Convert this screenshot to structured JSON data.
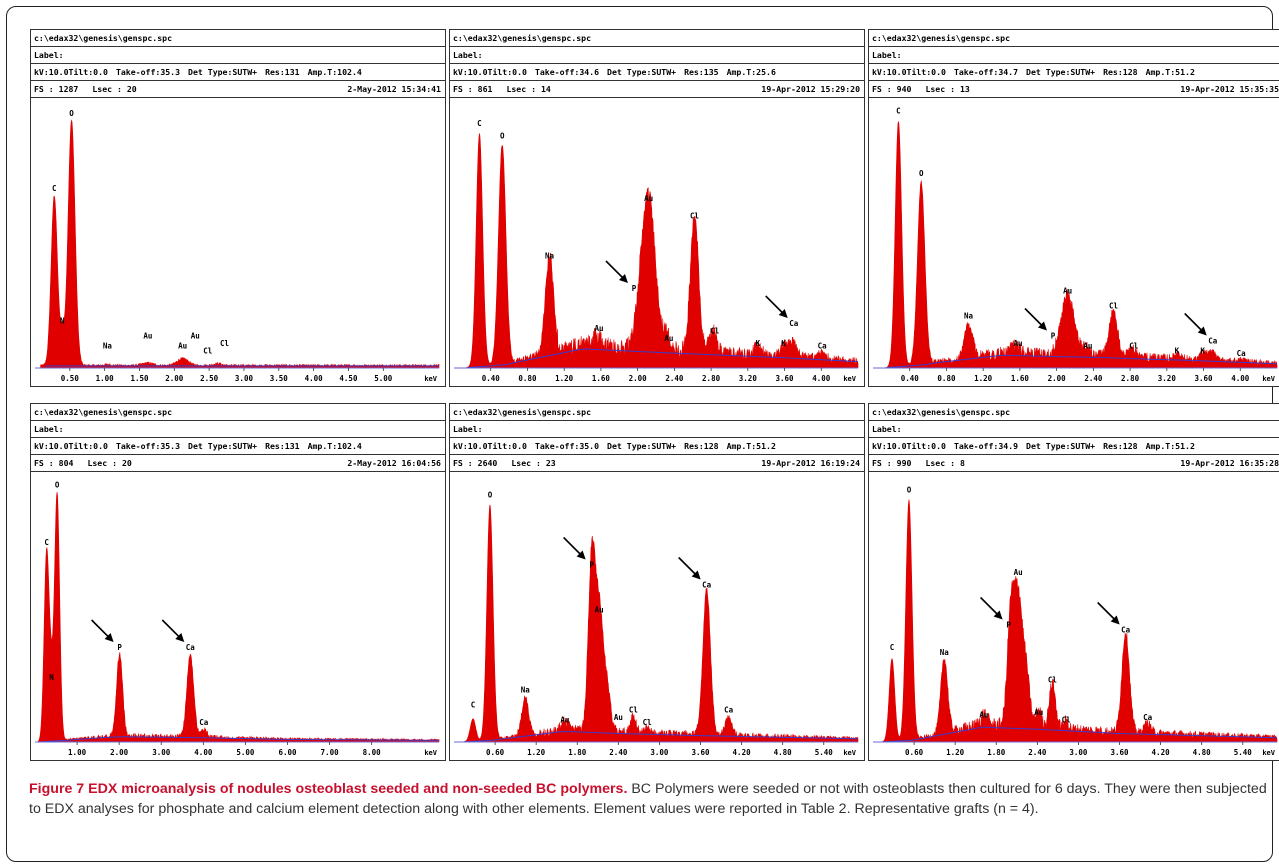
{
  "figure": {
    "caption_title": "Figure 7 EDX microanalysis of nodules osteoblast seeded and non-seeded BC polymers.",
    "caption_body": "BC Polymers were seeded or not with osteoblasts then cultured for 6 days. They were then subjected to EDX analyses for phosphate and calcium element detection along with other elements. Element values were reported in Table 2. Representative grafts (n = 4)."
  },
  "chart_data": [
    {
      "type": "line",
      "file": "c:\\edax32\\genesis\\genspc.spc",
      "label": "Label:",
      "kv": "kV:10.0",
      "tilt": "Tilt:0.0",
      "takeoff": "Take-off:35.3",
      "det_type": "Det Type:SUTW+",
      "res": "Res:131",
      "amp": "Amp.T:102.4",
      "fs": "FS : 1287",
      "lsec": "Lsec : 20",
      "datetime": "2-May-2012 15:34:41",
      "xlabel": "keV",
      "xlim": [
        0,
        5.8
      ],
      "xticks": [
        "0.50",
        "1.00",
        "1.50",
        "2.00",
        "2.50",
        "3.00",
        "3.50",
        "4.00",
        "4.50",
        "5.00"
      ],
      "xtick_values": [
        0.5,
        1.0,
        1.5,
        2.0,
        2.5,
        3.0,
        3.5,
        4.0,
        4.5,
        5.0
      ],
      "color": "#e00000",
      "peaks": [
        {
          "e": 0.277,
          "h": 0.68,
          "w": 0.045
        },
        {
          "e": 0.392,
          "h": 0.12,
          "w": 0.03
        },
        {
          "e": 0.525,
          "h": 0.98,
          "w": 0.05
        },
        {
          "e": 1.04,
          "h": 0.004,
          "w": 0.05
        },
        {
          "e": 1.62,
          "h": 0.01,
          "w": 0.08
        },
        {
          "e": 2.12,
          "h": 0.028,
          "w": 0.08
        },
        {
          "e": 2.62,
          "h": 0.008,
          "w": 0.06
        }
      ],
      "labels": [
        {
          "text": "C",
          "e": 0.277,
          "h": 0.7
        },
        {
          "text": "N",
          "e": 0.392,
          "h": 0.17
        },
        {
          "text": "O",
          "e": 0.525,
          "h": 1.0
        },
        {
          "text": "Na",
          "e": 1.04,
          "h": 0.07
        },
        {
          "text": "Au",
          "e": 1.62,
          "h": 0.11
        },
        {
          "text": "Au",
          "e": 2.12,
          "h": 0.07
        },
        {
          "text": "Au",
          "e": 2.3,
          "h": 0.11
        },
        {
          "text": "Cl",
          "e": 2.48,
          "h": 0.05
        },
        {
          "text": "Cl",
          "e": 2.72,
          "h": 0.08
        }
      ],
      "arrows": []
    },
    {
      "type": "line",
      "file": "c:\\edax32\\genesis\\genspc.spc",
      "label": "Label:",
      "kv": "kV:10.0",
      "tilt": "Tilt:0.0",
      "takeoff": "Take-off:34.6",
      "det_type": "Det Type:SUTW+",
      "res": "Res:135",
      "amp": "Amp.T:25.6",
      "fs": "FS : 861",
      "lsec": "Lsec : 14",
      "datetime": "19-Apr-2012 15:29:20",
      "xlabel": "keV",
      "xlim": [
        0,
        4.4
      ],
      "xticks": [
        "0.40",
        "0.80",
        "1.20",
        "1.60",
        "2.00",
        "2.40",
        "2.80",
        "3.20",
        "3.60",
        "4.00"
      ],
      "xtick_values": [
        0.4,
        0.8,
        1.2,
        1.6,
        2.0,
        2.4,
        2.8,
        3.2,
        3.6,
        4.0
      ],
      "color": "#e00000",
      "peaks": [
        {
          "e": 0.277,
          "h": 0.93,
          "w": 0.035
        },
        {
          "e": 0.525,
          "h": 0.88,
          "w": 0.04
        },
        {
          "e": 1.04,
          "h": 0.39,
          "w": 0.045
        },
        {
          "e": 1.55,
          "h": 0.04,
          "w": 0.05
        },
        {
          "e": 2.12,
          "h": 0.61,
          "w": 0.07
        },
        {
          "e": 2.02,
          "h": 0.1,
          "w": 0.05
        },
        {
          "e": 2.32,
          "h": 0.06,
          "w": 0.05
        },
        {
          "e": 2.62,
          "h": 0.54,
          "w": 0.045
        },
        {
          "e": 2.82,
          "h": 0.09,
          "w": 0.04
        },
        {
          "e": 3.31,
          "h": 0.035,
          "w": 0.04
        },
        {
          "e": 3.59,
          "h": 0.04,
          "w": 0.04
        },
        {
          "e": 3.69,
          "h": 0.055,
          "w": 0.05
        },
        {
          "e": 4.01,
          "h": 0.025,
          "w": 0.04
        }
      ],
      "baseline": [
        {
          "e": 0.6,
          "v": 0.02
        },
        {
          "e": 1.4,
          "v": 0.09
        },
        {
          "e": 2.4,
          "v": 0.07
        },
        {
          "e": 3.5,
          "v": 0.05
        },
        {
          "e": 4.4,
          "v": 0.03
        }
      ],
      "labels": [
        {
          "text": "C",
          "e": 0.277,
          "h": 0.96
        },
        {
          "text": "O",
          "e": 0.525,
          "h": 0.91
        },
        {
          "text": "Na",
          "e": 1.04,
          "h": 0.43
        },
        {
          "text": "Au",
          "e": 1.58,
          "h": 0.14
        },
        {
          "text": "P",
          "e": 1.96,
          "h": 0.3
        },
        {
          "text": "Au",
          "e": 2.12,
          "h": 0.66
        },
        {
          "text": "Au",
          "e": 2.34,
          "h": 0.1
        },
        {
          "text": "Cl",
          "e": 2.62,
          "h": 0.59
        },
        {
          "text": "Cl",
          "e": 2.84,
          "h": 0.13
        },
        {
          "text": "K",
          "e": 3.31,
          "h": 0.08
        },
        {
          "text": "K",
          "e": 3.59,
          "h": 0.08
        },
        {
          "text": "Ca",
          "e": 3.7,
          "h": 0.16
        },
        {
          "text": "Ca",
          "e": 4.01,
          "h": 0.07
        }
      ],
      "arrows": [
        {
          "e": 1.96,
          "h": 0.3
        },
        {
          "e": 3.7,
          "h": 0.16
        }
      ]
    },
    {
      "type": "line",
      "file": "c:\\edax32\\genesis\\genspc.spc",
      "label": "Label:",
      "kv": "kV:10.0",
      "tilt": "Tilt:0.0",
      "takeoff": "Take-off:34.7",
      "det_type": "Det Type:SUTW+",
      "res": "Res:128",
      "amp": "Amp.T:51.2",
      "fs": "FS : 940",
      "lsec": "Lsec : 13",
      "datetime": "19-Apr-2012 15:35:35",
      "xlabel": "keV",
      "xlim": [
        0,
        4.4
      ],
      "xticks": [
        "0.40",
        "0.80",
        "1.20",
        "1.60",
        "2.00",
        "2.40",
        "2.80",
        "3.20",
        "3.60",
        "4.00"
      ],
      "xtick_values": [
        0.4,
        0.8,
        1.2,
        1.6,
        2.0,
        2.4,
        2.8,
        3.2,
        3.6,
        4.0
      ],
      "color": "#e00000",
      "peaks": [
        {
          "e": 0.277,
          "h": 0.98,
          "w": 0.035
        },
        {
          "e": 0.525,
          "h": 0.73,
          "w": 0.04
        },
        {
          "e": 1.04,
          "h": 0.13,
          "w": 0.045
        },
        {
          "e": 1.55,
          "h": 0.03,
          "w": 0.05
        },
        {
          "e": 2.12,
          "h": 0.24,
          "w": 0.07
        },
        {
          "e": 2.32,
          "h": 0.03,
          "w": 0.05
        },
        {
          "e": 2.62,
          "h": 0.18,
          "w": 0.045
        },
        {
          "e": 2.82,
          "h": 0.04,
          "w": 0.04
        },
        {
          "e": 3.31,
          "h": 0.015,
          "w": 0.04
        },
        {
          "e": 3.59,
          "h": 0.02,
          "w": 0.04
        },
        {
          "e": 3.69,
          "h": 0.03,
          "w": 0.05
        },
        {
          "e": 4.01,
          "h": 0.01,
          "w": 0.04
        }
      ],
      "baseline": [
        {
          "e": 0.6,
          "v": 0.02
        },
        {
          "e": 1.4,
          "v": 0.06
        },
        {
          "e": 2.4,
          "v": 0.05
        },
        {
          "e": 3.5,
          "v": 0.035
        },
        {
          "e": 4.4,
          "v": 0.02
        }
      ],
      "labels": [
        {
          "text": "C",
          "e": 0.277,
          "h": 1.01
        },
        {
          "text": "O",
          "e": 0.525,
          "h": 0.76
        },
        {
          "text": "Na",
          "e": 1.04,
          "h": 0.19
        },
        {
          "text": "Au",
          "e": 1.58,
          "h": 0.08
        },
        {
          "text": "P",
          "e": 1.96,
          "h": 0.11
        },
        {
          "text": "Au",
          "e": 2.12,
          "h": 0.29
        },
        {
          "text": "Au",
          "e": 2.34,
          "h": 0.07
        },
        {
          "text": "Cl",
          "e": 2.62,
          "h": 0.23
        },
        {
          "text": "Cl",
          "e": 2.84,
          "h": 0.07
        },
        {
          "text": "K",
          "e": 3.31,
          "h": 0.05
        },
        {
          "text": "K",
          "e": 3.59,
          "h": 0.05
        },
        {
          "text": "Ca",
          "e": 3.7,
          "h": 0.09
        },
        {
          "text": "Ca",
          "e": 4.01,
          "h": 0.04
        }
      ],
      "arrows": [
        {
          "e": 1.96,
          "h": 0.11
        },
        {
          "e": 3.7,
          "h": 0.09
        }
      ]
    },
    {
      "type": "line",
      "file": "c:\\edax32\\genesis\\genspc.spc",
      "label": "Label:",
      "kv": "kV:10.0",
      "tilt": "Tilt:0.0",
      "takeoff": "Take-off:35.3",
      "det_type": "Det Type:SUTW+",
      "res": "Res:131",
      "amp": "Amp.T:102.4",
      "fs": "FS : 804",
      "lsec": "Lsec : 20",
      "datetime": "2-May-2012 16:04:56",
      "xlabel": "keV",
      "xlim": [
        0,
        9.6
      ],
      "xticks": [
        "1.00",
        "2.00",
        "3.00",
        "4.00",
        "5.00",
        "6.00",
        "7.00",
        "8.00"
      ],
      "xtick_values": [
        1,
        2,
        3,
        4,
        5,
        6,
        7,
        8
      ],
      "color": "#e00000",
      "peaks": [
        {
          "e": 0.277,
          "h": 0.76,
          "w": 0.06
        },
        {
          "e": 0.392,
          "h": 0.2,
          "w": 0.05
        },
        {
          "e": 0.525,
          "h": 0.99,
          "w": 0.06
        },
        {
          "e": 2.01,
          "h": 0.33,
          "w": 0.07
        },
        {
          "e": 3.69,
          "h": 0.33,
          "w": 0.08
        },
        {
          "e": 4.01,
          "h": 0.03,
          "w": 0.07
        }
      ],
      "baseline": [
        {
          "e": 0.8,
          "v": 0.01
        },
        {
          "e": 2.0,
          "v": 0.025
        },
        {
          "e": 4.0,
          "v": 0.02
        },
        {
          "e": 6.0,
          "v": 0.012
        },
        {
          "e": 9.6,
          "v": 0.008
        }
      ],
      "labels": [
        {
          "text": "C",
          "e": 0.277,
          "h": 0.78
        },
        {
          "text": "N",
          "e": 0.392,
          "h": 0.24
        },
        {
          "text": "O",
          "e": 0.525,
          "h": 1.01
        },
        {
          "text": "P",
          "e": 2.01,
          "h": 0.36
        },
        {
          "text": "Ca",
          "e": 3.69,
          "h": 0.36
        },
        {
          "text": "Ca",
          "e": 4.01,
          "h": 0.06
        }
      ],
      "arrows": [
        {
          "e": 2.01,
          "h": 0.36
        },
        {
          "e": 3.69,
          "h": 0.36
        }
      ]
    },
    {
      "type": "line",
      "file": "c:\\edax32\\genesis\\genspc.spc",
      "label": "Label:",
      "kv": "kV:10.0",
      "tilt": "Tilt:0.0",
      "takeoff": "Take-off:35.0",
      "det_type": "Det Type:SUTW+",
      "res": "Res:128",
      "amp": "Amp.T:51.2",
      "fs": "FS : 2640",
      "lsec": "Lsec : 23",
      "datetime": "19-Apr-2012 16:19:24",
      "xlabel": "keV",
      "xlim": [
        0,
        5.9
      ],
      "xticks": [
        "0.60",
        "1.20",
        "1.80",
        "2.40",
        "3.00",
        "3.60",
        "4.20",
        "4.80",
        "5.40"
      ],
      "xtick_values": [
        0.6,
        1.2,
        1.8,
        2.4,
        3.0,
        3.6,
        4.2,
        4.8,
        5.4
      ],
      "color": "#e00000",
      "peaks": [
        {
          "e": 0.277,
          "h": 0.09,
          "w": 0.04
        },
        {
          "e": 0.525,
          "h": 0.94,
          "w": 0.045
        },
        {
          "e": 1.04,
          "h": 0.15,
          "w": 0.05
        },
        {
          "e": 1.62,
          "h": 0.03,
          "w": 0.05
        },
        {
          "e": 2.01,
          "h": 0.66,
          "w": 0.05
        },
        {
          "e": 2.12,
          "h": 0.48,
          "w": 0.06
        },
        {
          "e": 2.24,
          "h": 0.15,
          "w": 0.05
        },
        {
          "e": 2.62,
          "h": 0.07,
          "w": 0.04
        },
        {
          "e": 2.82,
          "h": 0.02,
          "w": 0.04
        },
        {
          "e": 3.69,
          "h": 0.58,
          "w": 0.055
        },
        {
          "e": 4.01,
          "h": 0.07,
          "w": 0.05
        }
      ],
      "baseline": [
        {
          "e": 0.6,
          "v": 0.01
        },
        {
          "e": 1.6,
          "v": 0.05
        },
        {
          "e": 2.4,
          "v": 0.04
        },
        {
          "e": 3.6,
          "v": 0.03
        },
        {
          "e": 5.9,
          "v": 0.015
        }
      ],
      "labels": [
        {
          "text": "C",
          "e": 0.277,
          "h": 0.13
        },
        {
          "text": "O",
          "e": 0.525,
          "h": 0.97
        },
        {
          "text": "Na",
          "e": 1.04,
          "h": 0.19
        },
        {
          "text": "Au",
          "e": 1.62,
          "h": 0.07
        },
        {
          "text": "P",
          "e": 2.01,
          "h": 0.69
        },
        {
          "text": "Au",
          "e": 2.12,
          "h": 0.51
        },
        {
          "text": "Au",
          "e": 2.4,
          "h": 0.08
        },
        {
          "text": "Cl",
          "e": 2.62,
          "h": 0.11
        },
        {
          "text": "Cl",
          "e": 2.82,
          "h": 0.06
        },
        {
          "text": "Ca",
          "e": 3.69,
          "h": 0.61
        },
        {
          "text": "Ca",
          "e": 4.01,
          "h": 0.11
        }
      ],
      "arrows": [
        {
          "e": 2.01,
          "h": 0.69
        },
        {
          "e": 3.69,
          "h": 0.61
        }
      ]
    },
    {
      "type": "line",
      "file": "c:\\edax32\\genesis\\genspc.spc",
      "label": "Label:",
      "kv": "kV:10.0",
      "tilt": "Tilt:0.0",
      "takeoff": "Take-off:34.9",
      "det_type": "Det Type:SUTW+",
      "res": "Res:128",
      "amp": "Amp.T:51.2",
      "fs": "FS : 990",
      "lsec": "Lsec : 8",
      "datetime": "19-Apr-2012 16:35:28",
      "xlabel": "keV",
      "xlim": [
        0,
        5.9
      ],
      "xticks": [
        "0.60",
        "1.20",
        "1.80",
        "2.40",
        "3.00",
        "3.60",
        "4.20",
        "4.80",
        "5.40"
      ],
      "xtick_values": [
        0.6,
        1.2,
        1.8,
        2.4,
        3.0,
        3.6,
        4.2,
        4.8,
        5.4
      ],
      "color": "#e00000",
      "peaks": [
        {
          "e": 0.277,
          "h": 0.33,
          "w": 0.04
        },
        {
          "e": 0.525,
          "h": 0.96,
          "w": 0.045
        },
        {
          "e": 1.04,
          "h": 0.3,
          "w": 0.05
        },
        {
          "e": 1.62,
          "h": 0.04,
          "w": 0.05
        },
        {
          "e": 2.01,
          "h": 0.42,
          "w": 0.05
        },
        {
          "e": 2.12,
          "h": 0.52,
          "w": 0.06
        },
        {
          "e": 2.24,
          "h": 0.2,
          "w": 0.05
        },
        {
          "e": 2.42,
          "h": 0.07,
          "w": 0.04
        },
        {
          "e": 2.62,
          "h": 0.18,
          "w": 0.045
        },
        {
          "e": 2.82,
          "h": 0.03,
          "w": 0.04
        },
        {
          "e": 3.69,
          "h": 0.4,
          "w": 0.055
        },
        {
          "e": 4.01,
          "h": 0.04,
          "w": 0.05
        }
      ],
      "baseline": [
        {
          "e": 0.6,
          "v": 0.01
        },
        {
          "e": 1.6,
          "v": 0.07
        },
        {
          "e": 2.4,
          "v": 0.06
        },
        {
          "e": 3.6,
          "v": 0.04
        },
        {
          "e": 5.9,
          "v": 0.02
        }
      ],
      "labels": [
        {
          "text": "C",
          "e": 0.277,
          "h": 0.36
        },
        {
          "text": "O",
          "e": 0.525,
          "h": 0.99
        },
        {
          "text": "Na",
          "e": 1.04,
          "h": 0.34
        },
        {
          "text": "Au",
          "e": 1.62,
          "h": 0.09
        },
        {
          "text": "P",
          "e": 1.98,
          "h": 0.45
        },
        {
          "text": "Au",
          "e": 2.12,
          "h": 0.66
        },
        {
          "text": "Au",
          "e": 2.42,
          "h": 0.1
        },
        {
          "text": "Cl",
          "e": 2.62,
          "h": 0.23
        },
        {
          "text": "Cl",
          "e": 2.82,
          "h": 0.07
        },
        {
          "text": "Ca",
          "e": 3.69,
          "h": 0.43
        },
        {
          "text": "Ca",
          "e": 4.01,
          "h": 0.08
        }
      ],
      "arrows": [
        {
          "e": 1.98,
          "h": 0.45
        },
        {
          "e": 3.69,
          "h": 0.43
        }
      ]
    }
  ]
}
